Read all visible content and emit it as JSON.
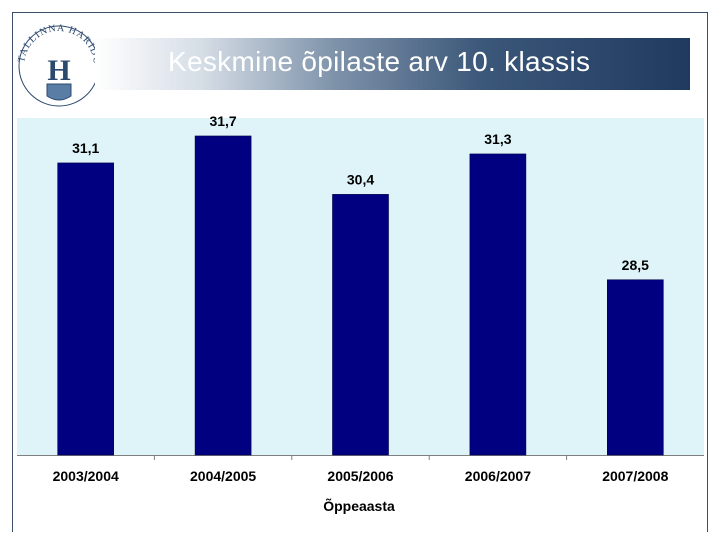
{
  "slide": {
    "title": "Keskmine õpilaste arv 10. klassis",
    "logo_text": "TALLINNA HARIDUSAMET",
    "logo_monogram": "H"
  },
  "chart_data": {
    "type": "bar",
    "title": "",
    "xlabel": "Õppeaasta",
    "ylabel": "",
    "categories": [
      "2003/2004",
      "2004/2005",
      "2005/2006",
      "2006/2007",
      "2007/2008"
    ],
    "values": [
      31.1,
      31.7,
      30.4,
      31.3,
      28.5
    ],
    "value_labels": [
      "31,1",
      "31,7",
      "30,4",
      "31,3",
      "28,5"
    ],
    "ylim": [
      24.6,
      32.1
    ],
    "bar_color": "#000080",
    "background_color": "#dff4f8",
    "grid": false,
    "legend": "none"
  }
}
